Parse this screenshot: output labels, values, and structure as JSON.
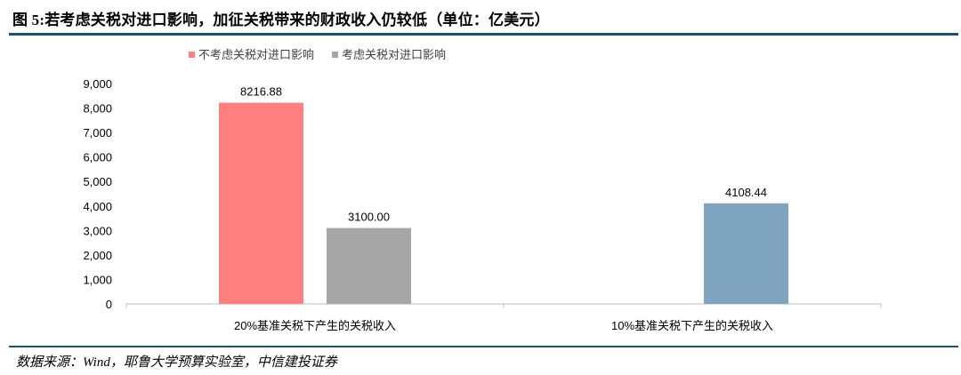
{
  "figure": {
    "title": "图 5:若考虑关税对进口影响，加征关税带来的财政收入仍较低（单位：亿美元）",
    "source": "数据来源：Wind，耶鲁大学预算实验室，中信建投证券"
  },
  "chart_data": {
    "type": "bar",
    "title": "",
    "xlabel": "",
    "ylabel": "",
    "categories": [
      "20%基准关税下产生的关税收入",
      "10%基准关税下产生的关税收入"
    ],
    "series": [
      {
        "name": "不考虑关税对进口影响",
        "values": [
          8216.88,
          null
        ],
        "labels": [
          "8216.88",
          ""
        ],
        "color": "#ff7f7f"
      },
      {
        "name": "考虑关税对进口影响",
        "values": [
          3100.0,
          4108.44
        ],
        "labels": [
          "3100.00",
          "4108.44"
        ],
        "colors": [
          "#a6a6a6",
          "#7fa4bf"
        ]
      }
    ],
    "ylim": [
      0,
      9000
    ],
    "yticks": [
      "0",
      "1,000",
      "2,000",
      "3,000",
      "4,000",
      "5,000",
      "6,000",
      "7,000",
      "8,000",
      "9,000"
    ],
    "grid": false,
    "legend_position": "top-left"
  }
}
